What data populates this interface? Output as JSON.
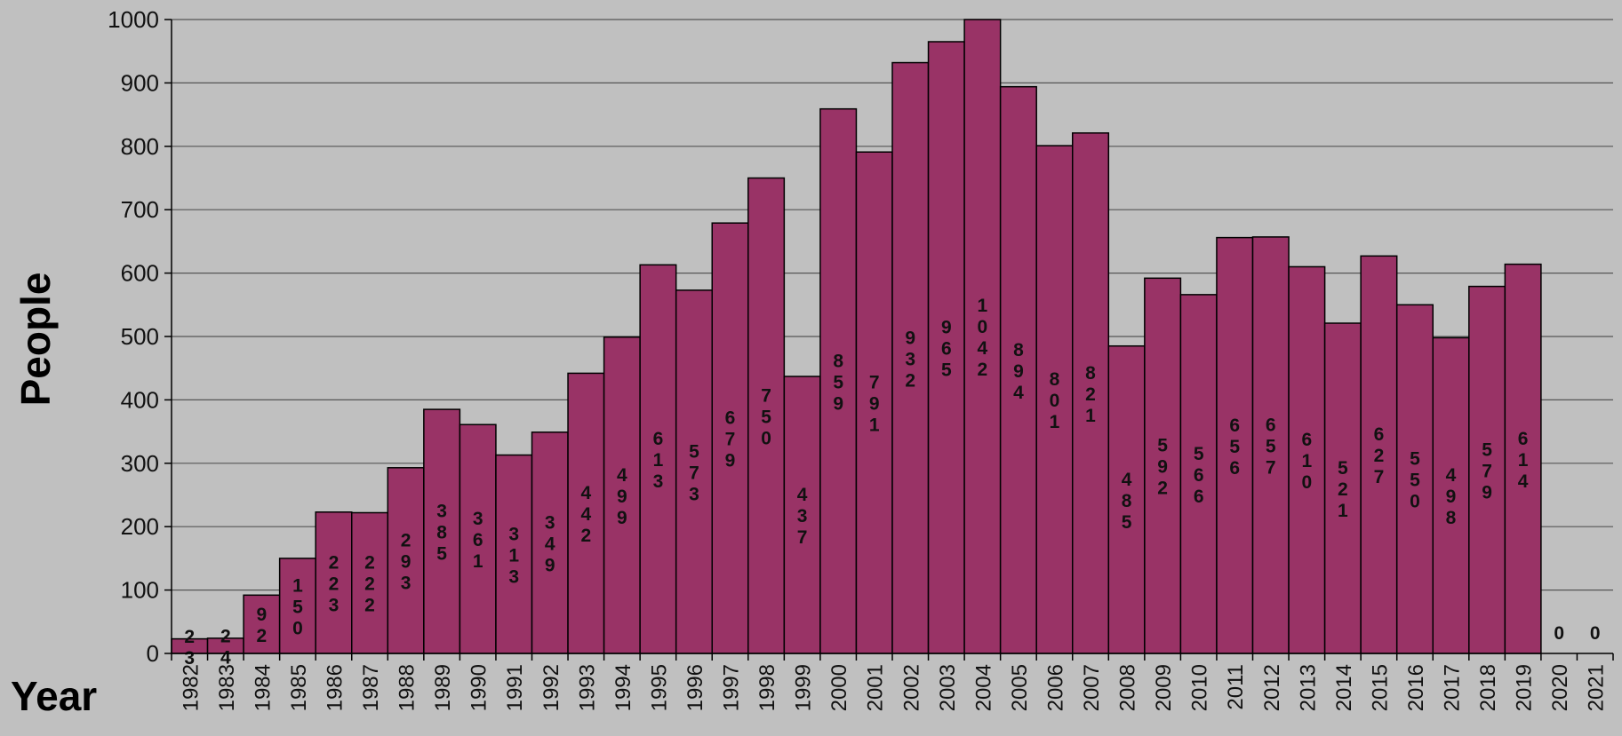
{
  "chart_data": {
    "type": "bar",
    "ylabel": "People",
    "xlabel": "Year",
    "ylim": [
      0,
      1000
    ],
    "yticks": [
      0,
      100,
      200,
      300,
      400,
      500,
      600,
      700,
      800,
      900,
      1000
    ],
    "grid": true,
    "bar_color": "#993366",
    "background_color": "#c0c0c0",
    "categories": [
      "1982",
      "1983",
      "1984",
      "1985",
      "1986",
      "1987",
      "1988",
      "1989",
      "1990",
      "1991",
      "1992",
      "1993",
      "1994",
      "1995",
      "1996",
      "1997",
      "1998",
      "1999",
      "2000",
      "2001",
      "2002",
      "2003",
      "2004",
      "2005",
      "2006",
      "2007",
      "2008",
      "2009",
      "2010",
      "2011",
      "2012",
      "2013",
      "2014",
      "2015",
      "2016",
      "2017",
      "2018",
      "2019",
      "2020",
      "2021"
    ],
    "values": [
      23,
      24,
      92,
      150,
      223,
      222,
      293,
      385,
      361,
      313,
      349,
      442,
      499,
      613,
      573,
      679,
      750,
      437,
      859,
      791,
      932,
      965,
      1042,
      894,
      801,
      821,
      485,
      592,
      566,
      656,
      657,
      610,
      521,
      627,
      550,
      498,
      579,
      614,
      0,
      0
    ]
  }
}
